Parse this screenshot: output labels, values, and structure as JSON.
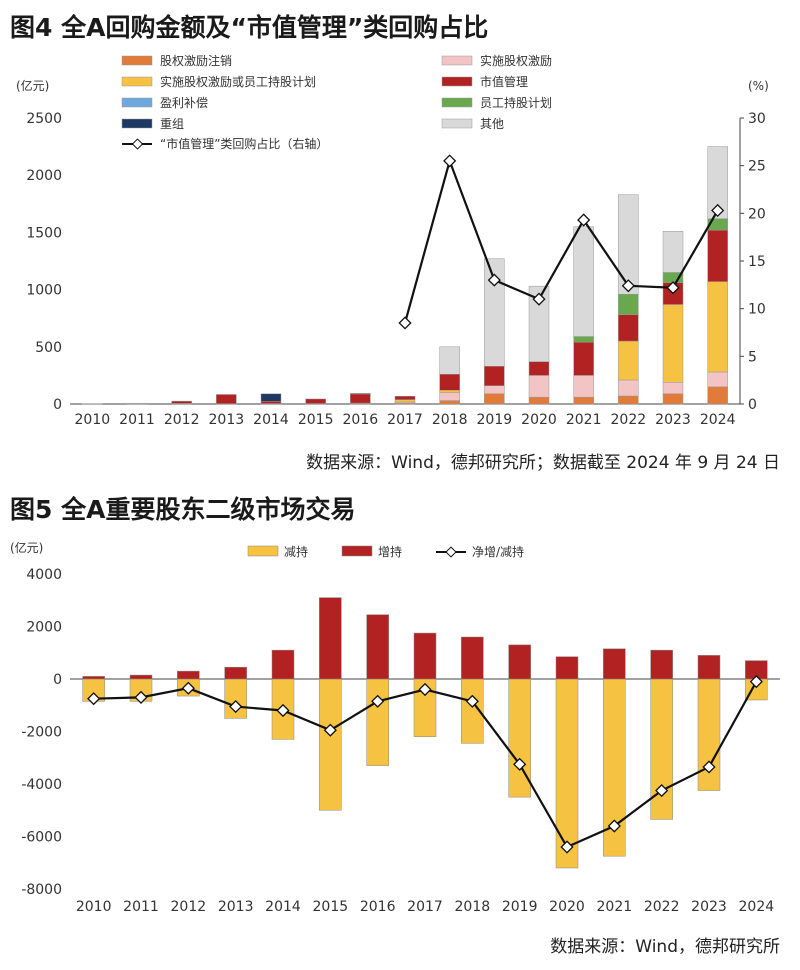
{
  "figures": [
    {
      "title": "图4  全A回购金额及“市值管理”类回购占比",
      "source": "数据来源：Wind，德邦研究所；数据截至 2024 年 9 月 24 日"
    },
    {
      "title": "图5  全A重要股东二级市场交易",
      "source": "数据来源：Wind，德邦研究所"
    }
  ],
  "chart_data": [
    {
      "type": "bar",
      "stacked": true,
      "categories": [
        "2010",
        "2011",
        "2012",
        "2013",
        "2014",
        "2015",
        "2016",
        "2017",
        "2018",
        "2019",
        "2020",
        "2021",
        "2022",
        "2023",
        "2024"
      ],
      "ylabel": "(亿元)",
      "y2label": "(%)",
      "ylim": [
        0,
        2500
      ],
      "yticks": [
        0,
        500,
        1000,
        1500,
        2000,
        2500
      ],
      "y2lim": [
        0,
        30
      ],
      "y2ticks": [
        0,
        5,
        10,
        15,
        20,
        25,
        30
      ],
      "legend_position": "top",
      "series": [
        {
          "name": "股权激励注销",
          "color": "#e07b39",
          "values": [
            0,
            2,
            4,
            2,
            3,
            3,
            5,
            8,
            30,
            90,
            60,
            60,
            70,
            90,
            150
          ]
        },
        {
          "name": "实施股权激励",
          "color": "#f2c4c4",
          "values": [
            0,
            1,
            1,
            1,
            1,
            1,
            3,
            10,
            70,
            70,
            190,
            190,
            140,
            100,
            130
          ]
        },
        {
          "name": "实施股权激励或员工持股计划",
          "color": "#f5c242",
          "values": [
            0,
            0,
            0,
            0,
            0,
            0,
            0,
            20,
            20,
            0,
            0,
            0,
            340,
            680,
            790
          ]
        },
        {
          "name": "市值管理",
          "color": "#b22222",
          "values": [
            1,
            2,
            20,
            80,
            20,
            40,
            80,
            30,
            140,
            170,
            120,
            290,
            230,
            190,
            450
          ]
        },
        {
          "name": "盈利补偿",
          "color": "#6fa8dc",
          "values": [
            0,
            0,
            0,
            0,
            0,
            0,
            0,
            0,
            0,
            0,
            0,
            0,
            0,
            0,
            0
          ]
        },
        {
          "name": "员工持股计划",
          "color": "#6aa84f",
          "values": [
            0,
            0,
            0,
            0,
            0,
            0,
            0,
            0,
            0,
            0,
            0,
            50,
            180,
            90,
            100
          ]
        },
        {
          "name": "重组",
          "color": "#1f3864",
          "values": [
            0,
            0,
            0,
            0,
            65,
            0,
            5,
            0,
            0,
            0,
            0,
            0,
            0,
            0,
            0
          ]
        },
        {
          "name": "其他",
          "color": "#d9d9d9",
          "values": [
            0,
            0,
            0,
            0,
            0,
            0,
            0,
            0,
            240,
            940,
            660,
            960,
            870,
            360,
            630
          ]
        }
      ],
      "line": {
        "name": "“市值管理”类回购占比（右轴）",
        "axis": "right",
        "start_index": 7,
        "values": [
          8.5,
          25.5,
          13,
          11,
          19.3,
          12.4,
          12.2,
          20.3
        ]
      }
    },
    {
      "type": "bar",
      "categories": [
        "2010",
        "2011",
        "2012",
        "2013",
        "2014",
        "2015",
        "2016",
        "2017",
        "2018",
        "2019",
        "2020",
        "2021",
        "2022",
        "2023",
        "2024"
      ],
      "ylabel": "(亿元)",
      "ylim": [
        -8000,
        4000
      ],
      "yticks": [
        -8000,
        -6000,
        -4000,
        -2000,
        0,
        2000,
        4000
      ],
      "legend_position": "top",
      "series": [
        {
          "name": "减持",
          "color": "#f5c242",
          "values": [
            -850,
            -850,
            -650,
            -1500,
            -2300,
            -5000,
            -3300,
            -2200,
            -2450,
            -4500,
            -7200,
            -6750,
            -5350,
            -4250,
            -800
          ]
        },
        {
          "name": "增持",
          "color": "#b22222",
          "values": [
            100,
            150,
            300,
            450,
            1100,
            3100,
            2450,
            1750,
            1600,
            1300,
            850,
            1150,
            1100,
            900,
            700
          ]
        }
      ],
      "line": {
        "name": "净增/减持",
        "values": [
          -750,
          -700,
          -350,
          -1050,
          -1200,
          -1950,
          -850,
          -400,
          -850,
          -3250,
          -6400,
          -5600,
          -4250,
          -3350,
          -100
        ]
      }
    }
  ]
}
